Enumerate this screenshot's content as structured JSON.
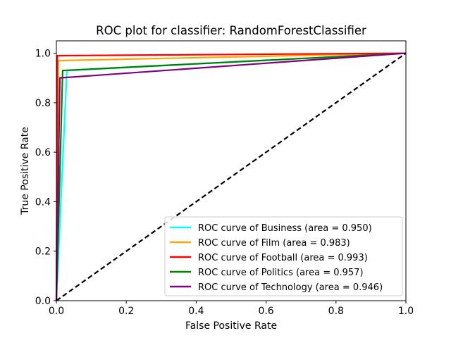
{
  "chart_data": {
    "type": "line",
    "title": "ROC plot for classifier: RandomForestClassifier",
    "xlabel": "False Positive Rate",
    "ylabel": "True Positive Rate",
    "xlim": [
      0.0,
      1.0
    ],
    "ylim": [
      0.0,
      1.05
    ],
    "xticks": [
      0.0,
      0.2,
      0.4,
      0.6,
      0.8,
      1.0
    ],
    "yticks": [
      0.0,
      0.2,
      0.4,
      0.6,
      0.8,
      1.0
    ],
    "xtick_labels": [
      "0.0",
      "0.2",
      "0.4",
      "0.6",
      "0.8",
      "1.0"
    ],
    "ytick_labels": [
      "0.0",
      "0.2",
      "0.4",
      "0.6",
      "0.8",
      "1.0"
    ],
    "grid": false,
    "legend_position": "lower-right",
    "series": [
      {
        "name": "ROC curve of Business (area = 0.950)",
        "color": "#00ffff",
        "x": [
          0.0,
          0.0,
          0.03,
          1.0
        ],
        "y": [
          0.0,
          0.0,
          0.93,
          1.0
        ]
      },
      {
        "name": "ROC curve of Film (area = 0.983)",
        "color": "#ffa500",
        "x": [
          0.0,
          0.005,
          1.0
        ],
        "y": [
          0.0,
          0.97,
          1.0
        ]
      },
      {
        "name": "ROC curve of Football (area = 0.993)",
        "color": "#ff0000",
        "x": [
          0.0,
          0.003,
          1.0
        ],
        "y": [
          0.0,
          0.99,
          1.0
        ]
      },
      {
        "name": "ROC curve of Politics (area = 0.957)",
        "color": "#008000",
        "x": [
          0.0,
          0.018,
          1.0
        ],
        "y": [
          0.0,
          0.93,
          1.0
        ]
      },
      {
        "name": "ROC curve of Technology (area = 0.946)",
        "color": "#800080",
        "x": [
          0.0,
          0.01,
          1.0
        ],
        "y": [
          0.0,
          0.9,
          1.0
        ]
      }
    ],
    "reference_line": {
      "x": [
        0.0,
        1.0
      ],
      "y": [
        0.0,
        1.0
      ],
      "color": "#000000",
      "style": "dashed"
    }
  }
}
